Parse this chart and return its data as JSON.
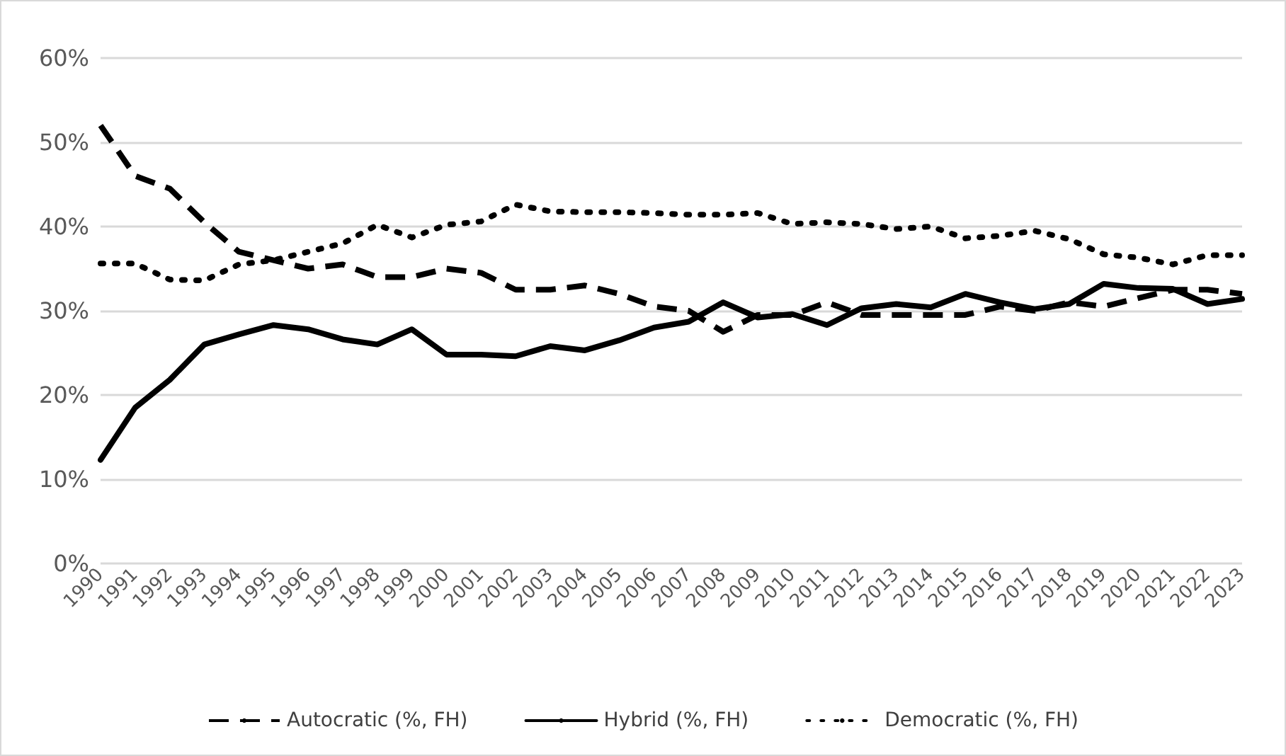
{
  "chart_data": {
    "type": "line",
    "categories": [
      "1990",
      "1991",
      "1992",
      "1993",
      "1994",
      "1995",
      "1996",
      "1997",
      "1998",
      "1999",
      "2000",
      "2001",
      "2002",
      "2003",
      "2004",
      "2005",
      "2006",
      "2007",
      "2008",
      "2009",
      "2010",
      "2011",
      "2012",
      "2013",
      "2014",
      "2015",
      "2016",
      "2017",
      "2018",
      "2019",
      "2020",
      "2021",
      "2022",
      "2023"
    ],
    "series": [
      {
        "name": "Autocratic (%, FH)",
        "color": "#000000",
        "line_style": "dashed",
        "values": [
          52,
          46,
          44.5,
          40.5,
          37,
          36,
          35,
          35.5,
          34,
          34,
          35,
          34.5,
          32.5,
          32.5,
          33,
          32,
          30.5,
          30,
          27.5,
          29.5,
          29.5,
          31,
          29.5,
          29.5,
          29.5,
          29.5,
          30.5,
          30,
          31,
          30.5,
          31.5,
          32.5,
          32.5,
          32
        ]
      },
      {
        "name": "Hybrid (%, FH)",
        "color": "#000000",
        "line_style": "solid",
        "values": [
          12.3,
          18.5,
          21.8,
          26,
          27.2,
          28.3,
          27.8,
          26.6,
          26,
          27.8,
          24.8,
          24.8,
          24.6,
          25.8,
          25.3,
          26.5,
          28,
          28.7,
          31,
          29.2,
          29.6,
          28.3,
          30.3,
          30.8,
          30.4,
          32,
          31,
          30.2,
          30.8,
          33.2,
          32.7,
          32.6,
          30.8,
          31.4
        ]
      },
      {
        "name": "Democratic (%, FH)",
        "color": "#000000",
        "line_style": "dotted",
        "values": [
          35.6,
          35.6,
          33.7,
          33.6,
          35.5,
          36,
          37,
          38,
          40.2,
          38.7,
          40.2,
          40.6,
          42.6,
          41.8,
          41.7,
          41.7,
          41.6,
          41.4,
          41.4,
          41.6,
          40.3,
          40.5,
          40.3,
          39.7,
          40,
          38.6,
          38.9,
          39.5,
          38.5,
          36.7,
          36.3,
          35.5,
          36.6,
          36.6
        ]
      }
    ],
    "ylim": [
      0,
      60
    ],
    "yticks": [
      {
        "value": 0,
        "label": "0%"
      },
      {
        "value": 10,
        "label": "10%"
      },
      {
        "value": 20,
        "label": "20%"
      },
      {
        "value": 30,
        "label": "30%"
      },
      {
        "value": 40,
        "label": "40%"
      },
      {
        "value": 50,
        "label": "50%"
      },
      {
        "value": 60,
        "label": "60%"
      }
    ],
    "grid": "y",
    "legend": "bottom",
    "marker": "none"
  }
}
